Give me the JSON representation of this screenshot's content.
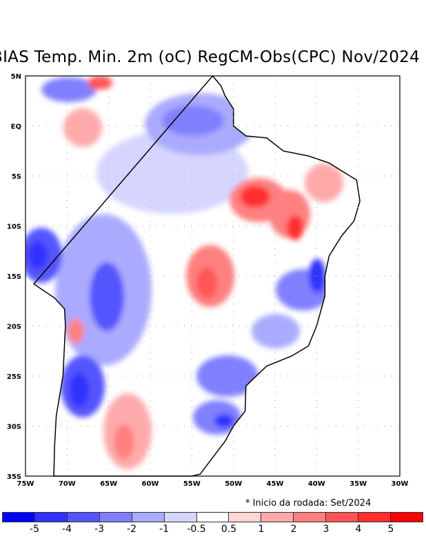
{
  "title": "BIAS Temp. Min. 2m (oC) RegCM-Obs(CPC) Nov/2024",
  "lat_labels": [
    "5N",
    "EQ",
    "5S",
    "10S",
    "15S",
    "20S",
    "25S",
    "30S",
    "35S"
  ],
  "lon_labels": [
    "75W",
    "70W",
    "65W",
    "60W",
    "55W",
    "50W",
    "45W",
    "40W",
    "35W",
    "30W"
  ],
  "note": "* Inicio da rodada: Set/2024",
  "colorbar": {
    "colors": [
      "#0000ff",
      "#3030ff",
      "#5555ff",
      "#8080ff",
      "#aaaaff",
      "#d5d5ff",
      "#ffffff",
      "#ffd5d5",
      "#ffaaaa",
      "#ff8080",
      "#ff5555",
      "#ff2f2f",
      "#ff0000"
    ],
    "labels": [
      "-5",
      "-4",
      "-3",
      "-2",
      "-1",
      "-0.5",
      "0.5",
      "1",
      "2",
      "3",
      "4",
      "5"
    ]
  }
}
